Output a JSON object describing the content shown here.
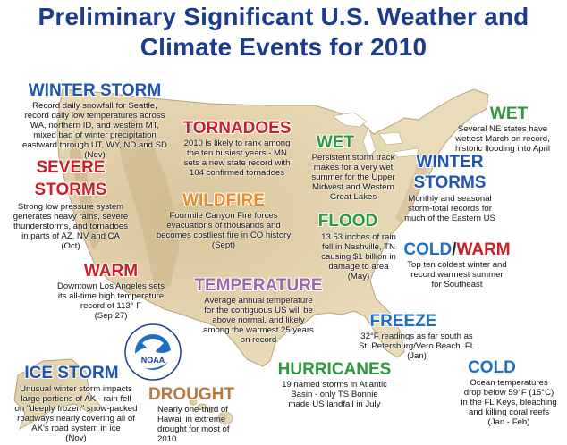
{
  "header": {
    "title_line1": "Preliminary Significant U.S. Weather and",
    "title_line2": "Climate Events for 2010"
  },
  "colors": {
    "title": "#1c3c8e",
    "winter": "#1e55b0",
    "severe": "#c82028",
    "tornado": "#c82028",
    "wildfire": "#ef8a20",
    "wet": "#2a9a3c",
    "flood": "#2a9a3c",
    "temperature": "#9a6aa8",
    "freeze": "#1e6fc4",
    "cold": "#1e6fc4",
    "drought": "#b87a3c",
    "hurricanes": "#2a9a3c",
    "map_land": "#e6d7b3",
    "map_relief": "#c9b287"
  },
  "logo": {
    "name": "noaa-logo",
    "text": "NOAA"
  },
  "events": {
    "winter_storm": {
      "title": "WINTER STORM",
      "lines": [
        "Record daily snowfall for Seattle,",
        "record daily low temperatures across",
        "WA, northern ID, and western MT,",
        "mixed bag of winter precipitation",
        "eastward through UT, WY, ND and SD",
        "(Nov)"
      ]
    },
    "tornadoes": {
      "title": "TORNADOES",
      "lines": [
        "2010 is likely to rank among",
        "the ten busiest years - MN",
        "sets a new state record with",
        "104 confirmed tornadoes"
      ]
    },
    "severe_storms": {
      "title1": "SEVERE",
      "title2": "STORMS",
      "lines": [
        "Strong low pressure system",
        "generates heavy rains, severe",
        "thunderstorms, and tornadoes",
        "in parts of AZ, NV and CA",
        "(Oct)"
      ]
    },
    "wildfire": {
      "title": "WILDFIRE",
      "lines": [
        "Fourmile Canyon Fire forces",
        "evacuations of thousands and",
        "becomes costliest fire in CO history",
        "(Sept)"
      ]
    },
    "wet_midwest": {
      "title": "WET",
      "lines": [
        "Persistent storm track",
        "makes for a very wet",
        "summer for the Upper",
        "Midwest and Western",
        "Great Lakes"
      ]
    },
    "wet_ne": {
      "title": "WET",
      "lines": [
        "Several NE states have",
        "wettest March on record,",
        "historic flooding into April"
      ]
    },
    "winter_storms": {
      "title1": "WINTER",
      "title2": "STORMS",
      "lines": [
        "Monthly and seasonal",
        "storm-total records for",
        "much of the Eastern US"
      ]
    },
    "flood": {
      "title": "FLOOD",
      "lines": [
        "13.53 inches of rain",
        "fell in Nashville, TN",
        "causing $1 billion in",
        "damage to area",
        "(May)"
      ]
    },
    "cold_warm": {
      "title_cold": "COLD",
      "title_sep": "/",
      "title_warm": "WARM",
      "lines": [
        "Top ten coldest winter and",
        "record warmest summer",
        "for Southeast"
      ]
    },
    "warm": {
      "title": "WARM",
      "lines": [
        "Downtown Los Angeles sets",
        "its all-time high temperature",
        "record of 113° F",
        "(Sep 27)"
      ]
    },
    "temperature": {
      "title": "TEMPERATURE",
      "lines": [
        "Average annual temperature",
        "for the contiguous US will be",
        "above normal, and likely",
        "among the warmest 25 years",
        "on record"
      ]
    },
    "freeze": {
      "title": "FREEZE",
      "lines": [
        "32°F readings as far south as",
        "St. Petersburg/Vero Beach, FL",
        "(Jan)"
      ]
    },
    "cold_fl": {
      "title": "COLD",
      "lines": [
        "Ocean temperatures",
        "drop below 59°F (15°C)",
        "in the FL Keys, bleaching",
        "and killing coral reefs",
        "(Jan - Feb)"
      ]
    },
    "ice_storm": {
      "title": "ICE STORM",
      "lines": [
        "Unusual winter storm impacts",
        "large portions of AK - rain fell",
        "on \"deeply frozen\" snow-packed",
        "roadways nearly covering all of",
        "AK's road system in ice",
        "(Nov)"
      ]
    },
    "drought": {
      "title": "DROUGHT",
      "lines": [
        "Nearly one-third of",
        "Hawaii in extreme",
        "drought for most of",
        "2010"
      ]
    },
    "hurricanes": {
      "title": "HURRICANES",
      "lines": [
        "19 named storms in Atlantic",
        "Basin - only TS Bonnie",
        "made US landfall in July"
      ]
    }
  }
}
